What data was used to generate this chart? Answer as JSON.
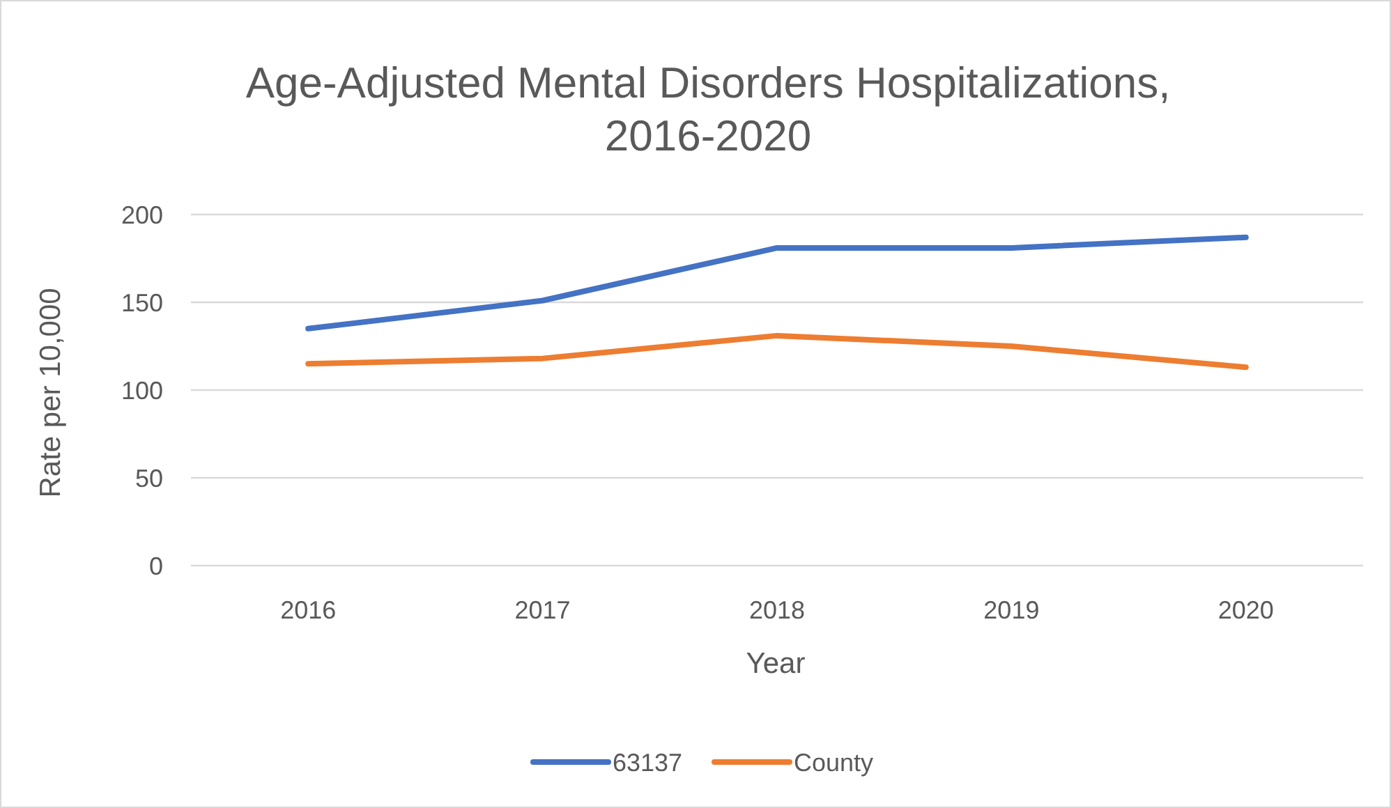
{
  "chart_data": {
    "type": "line",
    "title": "Age-Adjusted Mental Disorders Hospitalizations, 2016-2020",
    "xlabel": "Year",
    "ylabel": "Rate per 10,000",
    "categories": [
      "2016",
      "2017",
      "2018",
      "2019",
      "2020"
    ],
    "series": [
      {
        "name": "63137",
        "color": "#4472c4",
        "values": [
          135,
          151,
          181,
          181,
          187
        ]
      },
      {
        "name": "County",
        "color": "#ed7d31",
        "values": [
          115,
          118,
          131,
          125,
          113
        ]
      }
    ],
    "ylim": [
      0,
      200
    ],
    "yticks": [
      0,
      50,
      100,
      150,
      200
    ],
    "grid": "y",
    "legend": "bottom",
    "marker": "none",
    "line_style": "solid"
  }
}
